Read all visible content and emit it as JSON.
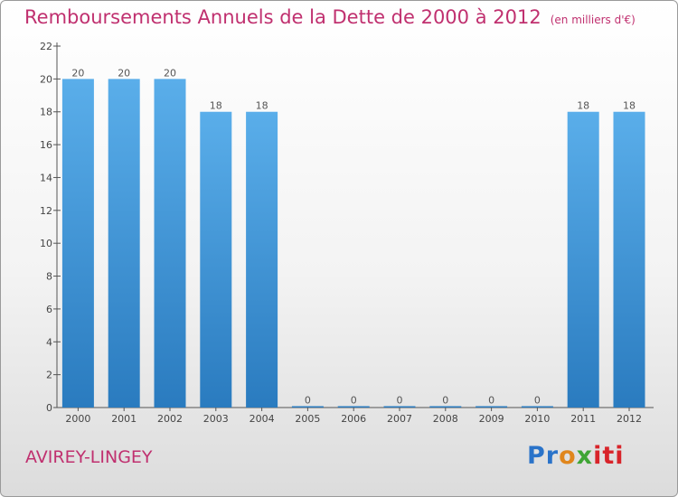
{
  "header": {
    "title": "Remboursements Annuels de la Dette de 2000 à 2012",
    "unit": "(en milliers d'€)"
  },
  "footer": {
    "commune": "AVIREY-LINGEY",
    "logo": [
      "Pr",
      "o",
      "x",
      "iti"
    ]
  },
  "colors": {
    "title": "#c0306f",
    "bar_top": "#5aaeea",
    "bar_bottom": "#2a7bbf"
  },
  "chart_data": {
    "type": "bar",
    "title": "Remboursements Annuels de la Dette de 2000 à 2012",
    "xlabel": "",
    "ylabel": "",
    "categories": [
      "2000",
      "2001",
      "2002",
      "2003",
      "2004",
      "2005",
      "2006",
      "2007",
      "2008",
      "2009",
      "2010",
      "2011",
      "2012"
    ],
    "values": [
      20,
      20,
      20,
      18,
      18,
      0,
      0,
      0,
      0,
      0,
      0,
      18,
      18
    ],
    "data_labels": [
      "20",
      "20",
      "20",
      "18",
      "18",
      "0",
      "0",
      "0",
      "0",
      "0",
      "0",
      "18",
      "18"
    ],
    "ylim": [
      0,
      22
    ],
    "yticks": [
      "0",
      "2",
      "4",
      "6",
      "8",
      "10",
      "12",
      "14",
      "16",
      "18",
      "20",
      "22"
    ],
    "grid": false,
    "legend": "none"
  }
}
